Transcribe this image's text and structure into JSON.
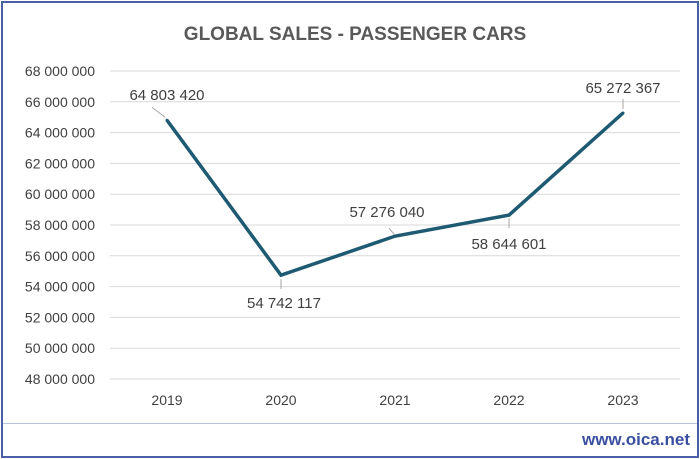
{
  "chart_data": {
    "type": "line",
    "title": "GLOBAL SALES - PASSENGER CARS",
    "xlabel": "",
    "ylabel": "",
    "categories": [
      "2019",
      "2020",
      "2021",
      "2022",
      "2023"
    ],
    "series": [
      {
        "values": [
          64803420,
          54742117,
          57276040,
          58644601,
          65272367
        ],
        "data_labels": [
          "64 803 420",
          "54 742 117",
          "57 276 040",
          "58 644 601",
          "65 272 367"
        ]
      }
    ],
    "ylim": [
      48000000,
      68000000
    ],
    "yticks": [
      48000000,
      50000000,
      52000000,
      54000000,
      56000000,
      58000000,
      60000000,
      62000000,
      64000000,
      66000000,
      68000000
    ],
    "ytick_labels": [
      "48 000 000",
      "50 000 000",
      "52 000 000",
      "54 000 000",
      "56 000 000",
      "58 000 000",
      "60 000 000",
      "62 000 000",
      "64 000 000",
      "66 000 000",
      "68 000 000"
    ],
    "grid": true,
    "legend": "none",
    "colors": {
      "line": "#1f5a73",
      "grid": "#d9d9d9",
      "title": "#595959",
      "text": "#404040",
      "border": "#4a5fa8",
      "footer": "#3b4fa0"
    }
  },
  "footer": {
    "source": "www.oica.net"
  }
}
